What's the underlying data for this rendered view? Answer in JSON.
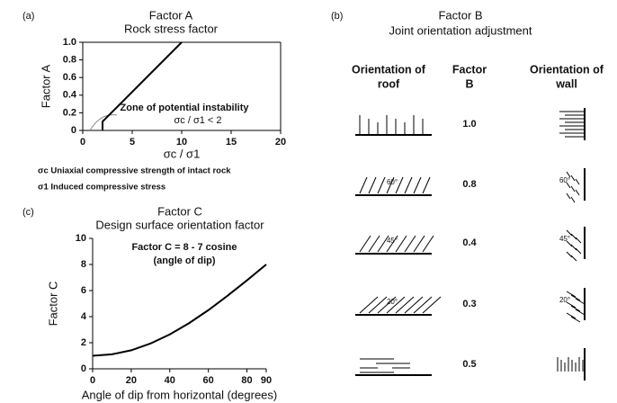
{
  "chart_data": [
    {
      "type": "line",
      "panel": "(a)",
      "title": "Factor A",
      "subtitle": "Rock stress factor",
      "y_label": "Factor A",
      "x_label": "σc / σ1",
      "x": [
        2,
        2,
        10
      ],
      "values": [
        0,
        0.1,
        1.0
      ],
      "color": "#000000",
      "xlim": [
        0,
        20
      ],
      "xticks": [
        0,
        5,
        10,
        15,
        20
      ],
      "ylim": [
        0,
        1
      ],
      "yticks": [
        0,
        {
          "value": 0.2,
          "label": "0.2"
        },
        {
          "value": 0.4,
          "label": "0.4"
        },
        {
          "value": 0.6,
          "label": "0.6"
        },
        {
          "value": 0.8,
          "label": "0.8"
        },
        {
          "value": 1,
          "label": "1.0"
        }
      ],
      "annotations": [
        "Zone of potential instability",
        "σc / σ1  < 2"
      ],
      "notes": [
        "σc Uniaxial compressive strength of intact rock",
        "σ1 Induced compressive stress"
      ]
    },
    {
      "type": "line",
      "panel": "(c)",
      "title": "Factor C",
      "subtitle": "Design surface orientation factor",
      "y_label": "Factor C",
      "x_label": "Angle of dip from horizontal (degrees)",
      "x": [
        0,
        10,
        20,
        30,
        40,
        50,
        60,
        70,
        80,
        90
      ],
      "values": [
        1,
        1.11,
        1.42,
        1.94,
        2.64,
        3.5,
        4.5,
        5.61,
        6.78,
        8
      ],
      "color": "#000000",
      "xlim": [
        0,
        90
      ],
      "xticks": [
        0,
        20,
        40,
        60,
        80,
        90
      ],
      "ylim": [
        0,
        10
      ],
      "yticks": [
        0,
        2,
        4,
        6,
        8,
        10
      ],
      "annotations": [
        "Factor C = 8 - 7 cosine",
        "(angle of dip)"
      ]
    }
  ],
  "table": {
    "panel": "(b)",
    "title": "Factor B",
    "subtitle": "Joint orientation adjustment",
    "headers": [
      [
        "Orientation of",
        "roof"
      ],
      [
        "Factor",
        "B"
      ],
      [
        "Orientation of",
        "wall"
      ]
    ],
    "rows": [
      {
        "factor": "1.0"
      },
      {
        "factor": "0.8",
        "angle": "60°"
      },
      {
        "factor": "0.4",
        "angle": "45°"
      },
      {
        "factor": "0.3",
        "angle": "20°"
      },
      {
        "factor": "0.5"
      }
    ]
  }
}
